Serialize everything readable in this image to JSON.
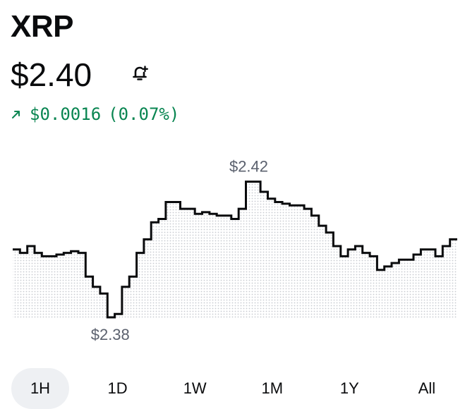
{
  "asset": {
    "name": "XRP",
    "price": "$2.40"
  },
  "alert": {
    "icon": "bell-plus-icon"
  },
  "change": {
    "direction": "up",
    "amount": "$0.0016",
    "percent": "(0.07%)",
    "color": "#098551"
  },
  "chart_data": {
    "type": "line",
    "high_label": "$2.42",
    "low_label": "$2.38",
    "ylim": [
      2.38,
      2.422
    ],
    "values": [
      2.4,
      2.399,
      2.401,
      2.399,
      2.398,
      2.398,
      2.3985,
      2.399,
      2.3995,
      2.399,
      2.392,
      2.389,
      2.387,
      2.38,
      2.381,
      2.389,
      2.392,
      2.399,
      2.403,
      2.408,
      2.409,
      2.414,
      2.414,
      2.412,
      2.412,
      2.4105,
      2.411,
      2.4105,
      2.41,
      2.41,
      2.409,
      2.412,
      2.42,
      2.42,
      2.417,
      2.415,
      2.414,
      2.4135,
      2.413,
      2.413,
      2.412,
      2.41,
      2.407,
      2.405,
      2.401,
      2.398,
      2.4,
      2.401,
      2.399,
      2.398,
      2.394,
      2.395,
      2.396,
      2.397,
      2.397,
      2.3985,
      2.4,
      2.4,
      2.398,
      2.401,
      2.403,
      2.403
    ],
    "line_color": "#0a0b0d",
    "fill_color": "#c8cbd0"
  },
  "ranges": {
    "selected": "1H",
    "items": [
      "1H",
      "1D",
      "1W",
      "1M",
      "1Y",
      "All"
    ]
  }
}
